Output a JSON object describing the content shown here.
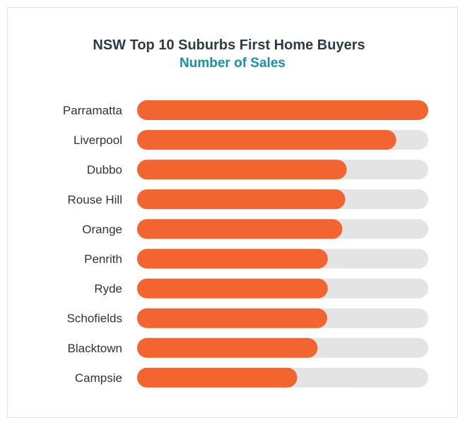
{
  "chart_data": {
    "type": "bar",
    "orientation": "horizontal",
    "title": "NSW Top 10 Suburbs First Home Buyers",
    "subtitle": "Number of Sales",
    "categories": [
      "Parramatta",
      "Liverpool",
      "Dubbo",
      "Rouse Hill",
      "Orange",
      "Penrith",
      "Ryde",
      "Schofields",
      "Blacktown",
      "Campsie"
    ],
    "values": [
      100,
      89,
      72,
      71.5,
      70.5,
      65.5,
      65.5,
      65.3,
      62,
      55
    ],
    "xlim": [
      0,
      100
    ],
    "grid": false,
    "legend": "none",
    "colors": {
      "bar": "#f26430",
      "track": "#e4e4e4",
      "label": "#333333"
    }
  }
}
